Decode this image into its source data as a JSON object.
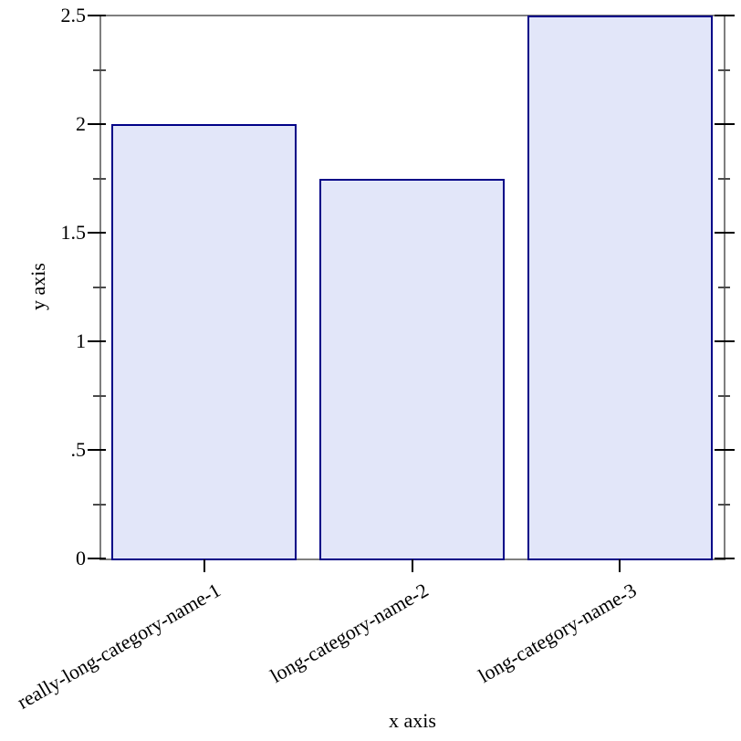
{
  "chart_data": {
    "type": "bar",
    "title": "",
    "categories": [
      "really-long-category-name-1",
      "long-category-name-2",
      "long-category-name-3"
    ],
    "values": [
      2,
      1.75,
      2.5
    ],
    "xlabel": "x axis",
    "ylabel": "y axis",
    "ylim": [
      0,
      2.5
    ],
    "y_major_ticks": [
      0,
      0.5,
      1,
      1.5,
      2,
      2.5
    ],
    "y_major_tick_labels": [
      "0",
      ".5",
      "1",
      "1.5",
      "2",
      "2.5"
    ],
    "y_minor_ticks": [
      0.25,
      0.75,
      1.25,
      1.75,
      2.25
    ],
    "grid": false,
    "legend": "none",
    "colors": {
      "background": "#ffffff",
      "axis": "#7f7f7f",
      "major_tick": "#000000",
      "minor_tick": "#4a4a4a",
      "bar_fill": "#e2e6f9",
      "bar_border": "#000087",
      "text": "#000000"
    }
  }
}
